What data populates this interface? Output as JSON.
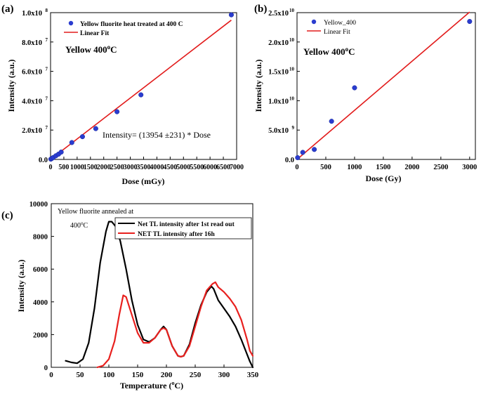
{
  "colors": {
    "point": "#2a3ccf",
    "fit": "#e21b1b",
    "black": "#000000",
    "red": "#e8201e"
  },
  "chart_data": [
    {
      "panel_label": "(a)",
      "type": "scatter",
      "xlabel": "Dose (mGy)",
      "ylabel": "Intensity (a.u.)",
      "xlim": [
        0,
        7000
      ],
      "ylim": [
        0,
        100000000
      ],
      "xticks": [
        0,
        500,
        1000,
        1500,
        2000,
        2500,
        3000,
        3500,
        4000,
        4500,
        5000,
        5500,
        6000,
        6500,
        7000
      ],
      "xtick_labels": [
        "0",
        "500",
        "1000",
        "1500",
        "2000",
        "2500",
        "3000",
        "3500",
        "4000",
        "4500",
        "5000",
        "5500",
        "6000",
        "6500",
        "7000"
      ],
      "yticks": [
        0,
        20000000,
        40000000,
        60000000,
        80000000,
        100000000
      ],
      "ytick_mantissa": [
        "0.0",
        "2.0x10",
        "4.0x10",
        "6.0x10",
        "8.0x10",
        "1.0x10"
      ],
      "ytick_exp": [
        "",
        "7",
        "7",
        "7",
        "7",
        "8"
      ],
      "annotation_main": "Yellow 400",
      "annotation_sup": "o",
      "annotation_end": "C",
      "equation": "Intensity= (13954 ±231) * Dose",
      "series": [
        {
          "name": "Yellow fluorite heat treated at 400 C",
          "kind": "points",
          "x": [
            10,
            50,
            100,
            200,
            300,
            400,
            800,
            1200,
            1700,
            2500,
            3400,
            6800
          ],
          "y": [
            200000,
            700000,
            1300000,
            2500000,
            3600000,
            5000000,
            11500000,
            15500000,
            21000000,
            32500000,
            44000000,
            98500000
          ]
        },
        {
          "name": "Linear Fit",
          "kind": "line",
          "x": [
            0,
            6800
          ],
          "y": [
            0,
            94887200
          ]
        }
      ]
    },
    {
      "panel_label": "(b)",
      "type": "scatter",
      "xlabel": "Dose (Gy)",
      "ylabel": "Intensity (a.u.)",
      "xlim": [
        0,
        3100
      ],
      "ylim": [
        0,
        25000000000
      ],
      "xticks": [
        0,
        500,
        1000,
        1500,
        2000,
        2500,
        3000
      ],
      "xtick_labels": [
        "0",
        "500",
        "1000",
        "1500",
        "2000",
        "2500",
        "3000"
      ],
      "yticks": [
        0,
        5000000000,
        10000000000,
        15000000000,
        20000000000,
        25000000000
      ],
      "ytick_mantissa": [
        "0.0",
        "5.0x10",
        "1.0x10",
        "1.5x10",
        "2.0x10",
        "2.5x10"
      ],
      "ytick_exp": [
        "",
        "9",
        "10",
        "10",
        "10",
        "10"
      ],
      "annotation_main": "Yellow 400",
      "annotation_sup": "o",
      "annotation_end": "C",
      "series": [
        {
          "name": "Yellow_400",
          "kind": "points",
          "x": [
            10,
            100,
            300,
            600,
            1000,
            3000
          ],
          "y": [
            300000000,
            1200000000,
            1700000000,
            6500000000,
            12200000000,
            23500000000
          ]
        },
        {
          "name": "Linear Fit",
          "kind": "line",
          "x": [
            0,
            3000
          ],
          "y": [
            0,
            25100000000
          ]
        }
      ]
    },
    {
      "panel_label": "(c)",
      "type": "line",
      "xlabel_main": "Temperature (",
      "xlabel_sup": "o",
      "xlabel_end": "C)",
      "ylabel": "Intensity (a.u.)",
      "xlim": [
        0,
        350
      ],
      "ylim": [
        0,
        10000
      ],
      "xticks": [
        0,
        50,
        100,
        150,
        200,
        250,
        300,
        350
      ],
      "xtick_labels": [
        "0",
        "50",
        "100",
        "150",
        "200",
        "250",
        "300",
        "350"
      ],
      "yticks": [
        0,
        2000,
        4000,
        6000,
        8000,
        10000
      ],
      "ytick_labels": [
        "0",
        "2000",
        "4000",
        "6000",
        "8000",
        "10000"
      ],
      "annotation_line1": "Yellow fluorite annealed at",
      "annotation_line2_main": "400",
      "annotation_line2_sup": "o",
      "annotation_line2_end": "C",
      "series": [
        {
          "name": "Net TL intensity after 1st read out",
          "color": "black",
          "x": [
            25,
            35,
            45,
            55,
            65,
            75,
            85,
            95,
            100,
            105,
            112,
            120,
            130,
            140,
            150,
            160,
            170,
            180,
            190,
            195,
            200,
            210,
            220,
            225,
            230,
            240,
            250,
            260,
            270,
            278,
            282,
            290,
            300,
            310,
            320,
            330,
            340,
            345,
            350
          ],
          "y": [
            400,
            300,
            250,
            500,
            1500,
            3600,
            6400,
            8300,
            8900,
            8900,
            8600,
            7700,
            6000,
            4100,
            2600,
            1700,
            1550,
            1800,
            2300,
            2500,
            2300,
            1300,
            700,
            650,
            700,
            1400,
            2700,
            3800,
            4600,
            4950,
            4800,
            4100,
            3600,
            3100,
            2500,
            1700,
            800,
            350,
            0
          ]
        },
        {
          "name": "NET TL intensity after 16h",
          "color": "red",
          "x": [
            80,
            90,
            100,
            110,
            118,
            125,
            130,
            140,
            150,
            160,
            170,
            180,
            190,
            195,
            200,
            210,
            220,
            225,
            230,
            240,
            250,
            260,
            270,
            280,
            285,
            290,
            300,
            310,
            320,
            330,
            340,
            345,
            350
          ],
          "y": [
            0,
            100,
            500,
            1600,
            3200,
            4400,
            4300,
            3200,
            2100,
            1500,
            1500,
            1800,
            2300,
            2400,
            2300,
            1300,
            700,
            650,
            700,
            1300,
            2500,
            3700,
            4700,
            5100,
            5200,
            4900,
            4600,
            4200,
            3700,
            2900,
            1700,
            1000,
            700
          ]
        }
      ]
    }
  ]
}
